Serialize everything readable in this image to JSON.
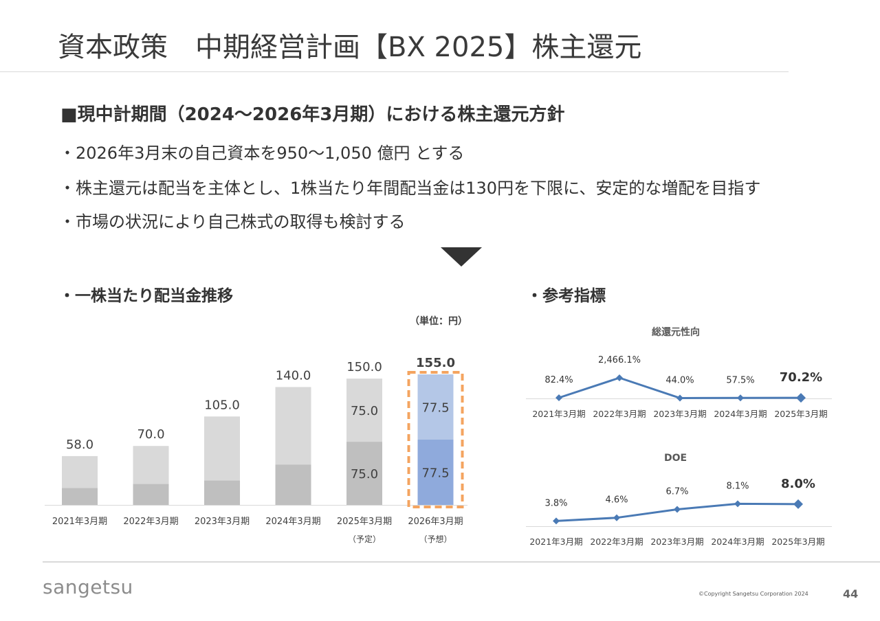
{
  "header": {
    "title": "資本政策　中期経営計画【BX 2025】株主還元"
  },
  "policy": {
    "heading": "■現中計期間（2024～2026年3月期）における株主還元方針",
    "bullets": [
      "・2026年3月末の自己資本を950～1,050 億円 とする",
      "・株主還元は配当を主体とし、1株当たり年間配当金は130円を下限に、安定的な増配を目指す",
      "・市場の状況により自己株式の取得も検討する"
    ]
  },
  "dividend_section": {
    "heading": "・一株当たり配当金推移",
    "unit": "（単位：円）"
  },
  "reference_section": {
    "heading": "・参考指標"
  },
  "colors": {
    "bar_light": "#d9d9d9",
    "bar_dark": "#bfbfbf",
    "bar_forecast_light": "#b4c7e7",
    "bar_forecast_dark": "#8faadc",
    "forecast_border": "#f4a460",
    "line": "#4a7ab5",
    "axis": "#d9d9d9"
  },
  "chart_data": [
    {
      "type": "bar",
      "stacked": true,
      "categories": [
        "2021年3月期",
        "2022年3月期",
        "2023年3月期",
        "2024年3月期",
        "2025年3月期",
        "2026年3月期"
      ],
      "category_notes": [
        "",
        "",
        "",
        "",
        "（予定）",
        "（予想）"
      ],
      "series": [
        {
          "values": [
            20.0,
            25.0,
            29.0,
            48.0,
            75.0,
            77.5
          ],
          "labels": [
            "",
            "",
            "",
            "",
            "75.0",
            "77.5"
          ]
        },
        {
          "values": [
            38.0,
            45.0,
            76.0,
            92.0,
            75.0,
            77.5
          ],
          "labels": [
            "",
            "",
            "",
            "",
            "75.0",
            "77.5"
          ]
        }
      ],
      "totals": [
        "58.0",
        "70.0",
        "105.0",
        "140.0",
        "150.0",
        "155.0"
      ],
      "highlight_index": 5,
      "ylim": [
        0,
        155
      ]
    },
    {
      "type": "line",
      "title": "総還元性向",
      "categories": [
        "2021年3月期",
        "2022年3月期",
        "2023年3月期",
        "2024年3月期",
        "2025年3月期"
      ],
      "values": [
        82.4,
        2466.1,
        44.0,
        57.5,
        70.2
      ],
      "labels": [
        "82.4%",
        "2,466.1%",
        "44.0%",
        "57.5%",
        "70.2%"
      ],
      "highlight_index": 4
    },
    {
      "type": "line",
      "title": "DOE",
      "categories": [
        "2021年3月期",
        "2022年3月期",
        "2023年3月期",
        "2024年3月期",
        "2025年3月期"
      ],
      "values": [
        3.8,
        4.6,
        6.7,
        8.1,
        8.0
      ],
      "labels": [
        "3.8%",
        "4.6%",
        "6.7%",
        "8.1%",
        "8.0%"
      ],
      "highlight_index": 4
    }
  ],
  "footer": {
    "logo": "sangetsu",
    "copyright": "©Copyright Sangetsu Corporation 2024",
    "page_number": "44"
  }
}
